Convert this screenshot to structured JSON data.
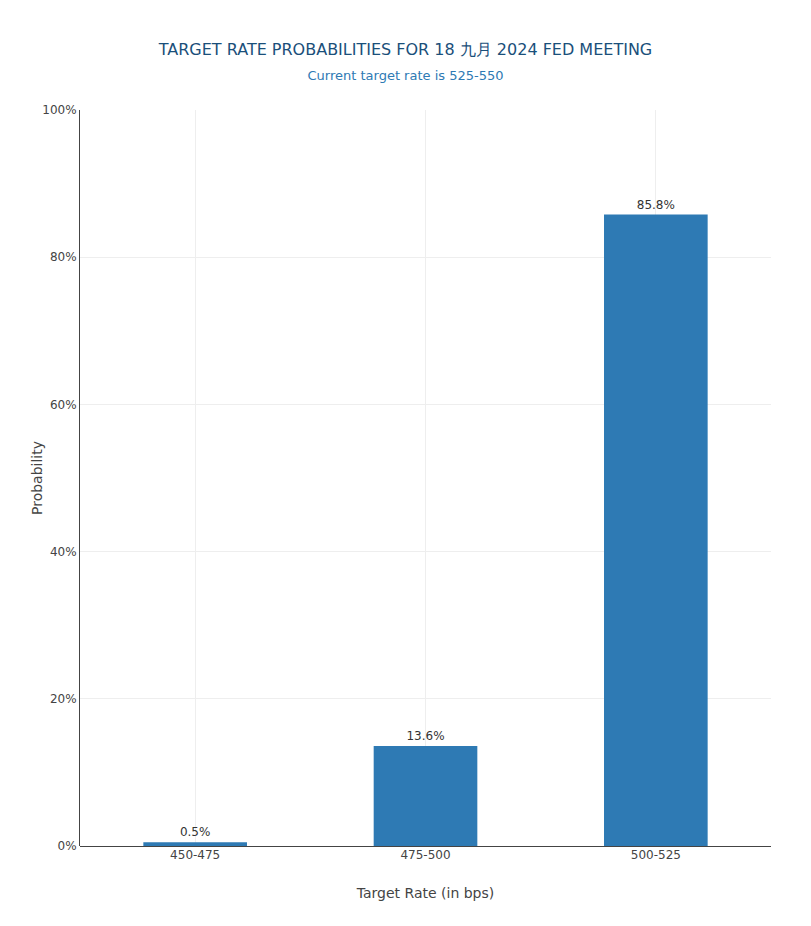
{
  "chart_data": {
    "type": "bar",
    "title": "TARGET RATE PROBABILITIES FOR 18 九月 2024 FED MEETING",
    "subtitle": "Current target rate is 525-550",
    "x_label": "Target Rate (in bps)",
    "y_label": "Probability",
    "categories": [
      "450-475",
      "475-500",
      "500-525"
    ],
    "values": [
      0.5,
      13.6,
      85.8
    ],
    "value_labels": [
      "0.5%",
      "13.6%",
      "85.8%"
    ],
    "data_labels": true,
    "color": "#2e7ab4",
    "ylim": [
      0,
      100
    ],
    "yticks": [
      {
        "value": 0,
        "label": "0%"
      },
      {
        "value": 20,
        "label": "20%"
      },
      {
        "value": 40,
        "label": "40%"
      },
      {
        "value": 60,
        "label": "60%"
      },
      {
        "value": 80,
        "label": "80%"
      },
      {
        "value": 100,
        "label": "100%"
      }
    ],
    "grid": true
  }
}
